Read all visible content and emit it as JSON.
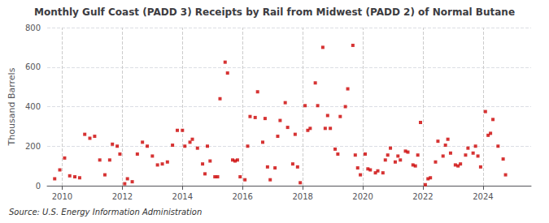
{
  "chart_data": {
    "type": "scatter",
    "title": "Monthly Gulf Coast (PADD 3) Receipts by Rail from Midwest (PADD 2) of Normal Butane",
    "ylabel": "Thousand Barrels",
    "annotations": [
      "Source: U.S. Energy Information Administration"
    ],
    "color": "#cc0000",
    "marker": "square",
    "grid": true,
    "xlim": [
      2009.5,
      2025.6
    ],
    "xticks": [
      2010,
      2012,
      2014,
      2016,
      2018,
      2020,
      2022,
      2024
    ],
    "ylim": [
      0,
      800
    ],
    "yticks": [
      0,
      200,
      400,
      600,
      800
    ],
    "x": [
      2009.75,
      2009.92,
      2010.08,
      2010.25,
      2010.42,
      2010.58,
      2010.75,
      2010.92,
      2011.08,
      2011.25,
      2011.42,
      2011.58,
      2011.67,
      2011.83,
      2011.92,
      2012.08,
      2012.17,
      2012.33,
      2012.5,
      2012.67,
      2012.83,
      2013.0,
      2013.17,
      2013.33,
      2013.5,
      2013.67,
      2013.83,
      2014.0,
      2014.08,
      2014.25,
      2014.33,
      2014.5,
      2014.67,
      2014.75,
      2014.83,
      2014.92,
      2015.08,
      2015.17,
      2015.25,
      2015.42,
      2015.5,
      2015.67,
      2015.75,
      2015.83,
      2015.92,
      2016.08,
      2016.17,
      2016.25,
      2016.42,
      2016.5,
      2016.67,
      2016.75,
      2016.83,
      2016.92,
      2017.08,
      2017.17,
      2017.25,
      2017.42,
      2017.5,
      2017.67,
      2017.75,
      2017.83,
      2017.92,
      2018.08,
      2018.17,
      2018.25,
      2018.42,
      2018.5,
      2018.67,
      2018.75,
      2018.83,
      2018.92,
      2019.08,
      2019.17,
      2019.25,
      2019.42,
      2019.5,
      2019.67,
      2019.75,
      2019.83,
      2019.92,
      2020.08,
      2020.17,
      2020.25,
      2020.42,
      2020.5,
      2020.67,
      2020.75,
      2020.83,
      2020.92,
      2021.08,
      2021.17,
      2021.25,
      2021.42,
      2021.5,
      2021.67,
      2021.75,
      2021.83,
      2021.92,
      2022.08,
      2022.17,
      2022.25,
      2022.42,
      2022.5,
      2022.67,
      2022.75,
      2022.83,
      2022.92,
      2023.08,
      2023.17,
      2023.25,
      2023.42,
      2023.5,
      2023.67,
      2023.75,
      2023.83,
      2023.92,
      2024.08,
      2024.17,
      2024.25,
      2024.33,
      2024.5,
      2024.67,
      2024.75
    ],
    "values": [
      35,
      80,
      140,
      50,
      45,
      40,
      260,
      240,
      250,
      130,
      55,
      130,
      210,
      200,
      160,
      10,
      35,
      20,
      160,
      220,
      200,
      150,
      105,
      110,
      120,
      205,
      280,
      280,
      200,
      220,
      235,
      190,
      110,
      60,
      200,
      125,
      45,
      45,
      440,
      625,
      570,
      130,
      125,
      130,
      45,
      30,
      200,
      350,
      345,
      475,
      220,
      340,
      95,
      30,
      90,
      250,
      330,
      420,
      295,
      110,
      260,
      95,
      15,
      405,
      280,
      290,
      520,
      405,
      700,
      290,
      355,
      290,
      185,
      160,
      350,
      400,
      490,
      710,
      155,
      90,
      55,
      160,
      85,
      80,
      65,
      75,
      65,
      130,
      155,
      190,
      120,
      150,
      130,
      175,
      170,
      105,
      100,
      155,
      320,
      5,
      35,
      40,
      120,
      225,
      150,
      205,
      235,
      165,
      105,
      100,
      110,
      155,
      190,
      165,
      200,
      150,
      95,
      375,
      255,
      265,
      335,
      200,
      135,
      55
    ]
  }
}
